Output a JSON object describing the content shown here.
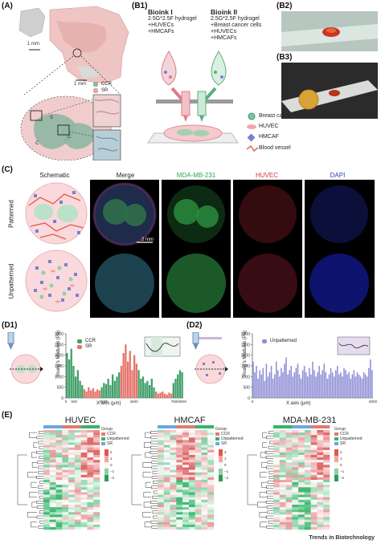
{
  "panels": {
    "A": {
      "label": "(A)",
      "scale_top": "1 mm",
      "scale_mid": "1 mm",
      "legend": [
        {
          "name": "CCR",
          "color": "#8fb7a3"
        },
        {
          "name": "SR",
          "color": "#e4a7a3"
        }
      ],
      "region_labels": [
        "S",
        "C",
        "C"
      ]
    },
    "B1": {
      "label": "(B1)",
      "bioink1_title": "Bioink I",
      "bioink1_lines": [
        "2.5G*2.5F hydrogel",
        "+HUVECs",
        "+HMCAFs"
      ],
      "bioink2_title": "Bioink II",
      "bioink2_lines": [
        "2.5G*2.5F hydrogel",
        "+Breast cancer cells",
        "+HUVECs",
        "+HMCAFs"
      ],
      "legend": [
        "Breast cancer cell",
        "HUVEC",
        "HMCAF",
        "Blood vessel"
      ]
    },
    "B2": {
      "label": "(B2)"
    },
    "B3": {
      "label": "(B3)"
    },
    "C": {
      "label": "(C)",
      "col_headers": [
        "Schematic",
        "Merge",
        "MDA-MB-231",
        "HUVEC",
        "DAPI"
      ],
      "row_labels": [
        "Patterned",
        "Unpatterned"
      ],
      "scale": "2 mm",
      "header_colors": [
        "#222222",
        "#222222",
        "#2aa84a",
        "#d6333a",
        "#2a3fb5"
      ]
    },
    "D1": {
      "label": "(D1)"
    },
    "D2": {
      "label": "(D2)"
    },
    "E": {
      "label": "(E)",
      "heatmaps": [
        {
          "title": "HUVEC"
        },
        {
          "title": "HMCAF"
        },
        {
          "title": "MDA-MB-231"
        }
      ],
      "group_legend": {
        "title": "Group",
        "items": [
          {
            "name": "CCR",
            "color": "#e07a72"
          },
          {
            "name": "Unpatterned",
            "color": "#38b36a"
          },
          {
            "name": "SR",
            "color": "#6aa7e0"
          }
        ],
        "scale_ticks": [
          "2",
          "1",
          "0",
          "−1",
          "−2"
        ]
      }
    }
  },
  "chart_data": [
    {
      "type": "bar",
      "panel": "D1",
      "ylabel": "Young's Modulus (Pa)",
      "xlabel": "X axis (μm)",
      "ylim": [
        0,
        3000
      ],
      "yticks": [
        "0",
        "500",
        "1000",
        "1500",
        "2000",
        "2500",
        "3000"
      ],
      "xticks": [
        "0",
        "500",
        "2500",
        "4500",
        "7500",
        "8000"
      ],
      "legend": [
        {
          "name": "CCR",
          "color": "#43a06b"
        },
        {
          "name": "SR",
          "color": "#e7746c"
        }
      ],
      "series": [
        {
          "name": "CCR",
          "values": [
            2100,
            1800,
            2300,
            1500,
            1000,
            1300,
            800,
            600
          ]
        },
        {
          "name": "SR",
          "values": [
            400,
            300,
            500,
            350,
            450,
            300,
            400,
            350
          ]
        },
        {
          "name": "CCR",
          "values": [
            500,
            700,
            650,
            900,
            600,
            1100,
            800,
            1000,
            1200
          ]
        },
        {
          "name": "SR",
          "values": [
            1500,
            2100,
            2500,
            1700,
            2200,
            1300,
            2000,
            1600
          ]
        },
        {
          "name": "CCR",
          "values": [
            1300,
            900,
            1000,
            700,
            800,
            600,
            900,
            500
          ]
        },
        {
          "name": "SR",
          "values": [
            300,
            200,
            250,
            300,
            200,
            150,
            250,
            200
          ]
        },
        {
          "name": "CCR",
          "values": [
            700,
            900,
            1100,
            1300,
            1200
          ]
        }
      ]
    },
    {
      "type": "bar",
      "panel": "D2",
      "ylabel": "Young's Modulus (Pa)",
      "xlabel": "X axis (μm)",
      "ylim": [
        0,
        3000
      ],
      "yticks": [
        "0",
        "500",
        "1000",
        "1500",
        "2000",
        "2500",
        "3000"
      ],
      "xticks": [
        "0",
        "8000"
      ],
      "legend": [
        {
          "name": "Unpatterned",
          "color": "#8f8fd6"
        }
      ],
      "values": [
        1700,
        1200,
        1500,
        900,
        1300,
        1100,
        1400,
        800,
        1600,
        1000,
        1200,
        1500,
        900,
        1100,
        1700,
        1300,
        1000,
        1400,
        1200,
        1600,
        1900,
        1100,
        1300,
        1500,
        1000,
        1200,
        1400,
        1600,
        1100,
        900,
        1300,
        1500,
        1200,
        1000,
        1400,
        1100,
        1700,
        1300,
        1000,
        1200,
        1500,
        1100,
        1300,
        1600,
        1200,
        900,
        1100,
        1400,
        1200,
        1000,
        1300,
        1500,
        1100,
        1200,
        1000,
        1400,
        1300,
        1100,
        1200,
        900,
        1100,
        1300,
        1000,
        1200,
        1100,
        1000,
        900,
        1200,
        1100,
        1000,
        1400,
        1800,
        1300
      ]
    }
  ],
  "footer": "Trends in Biotechnology"
}
